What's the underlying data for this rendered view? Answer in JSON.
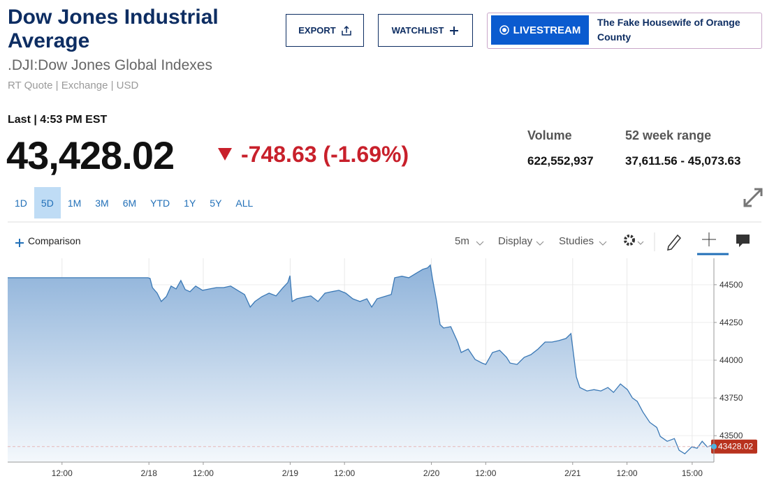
{
  "header": {
    "title": "Dow Jones Industrial Average",
    "subtitle": ".DJI:Dow Jones Global Indexes",
    "quote_info": "RT Quote | Exchange | USD"
  },
  "buttons": {
    "export": "EXPORT",
    "watchlist": "WATCHLIST"
  },
  "livestream": {
    "button": "LIVESTREAM",
    "show": "The Fake Housewife of Orange County"
  },
  "quote": {
    "last": "Last | 4:53 PM EST",
    "price": "43,428.02",
    "change": "-748.63 (-1.69%)",
    "volume_label": "Volume",
    "volume": "622,552,937",
    "range_label": "52 week range",
    "range": "37,611.56 - 45,073.63"
  },
  "range_tabs": {
    "items": [
      "1D",
      "5D",
      "1M",
      "3M",
      "6M",
      "YTD",
      "1Y",
      "5Y",
      "ALL"
    ],
    "selected": 1
  },
  "toolbar": {
    "comparison": "Comparison",
    "interval": "5m",
    "display": "Display",
    "studies": "Studies"
  },
  "chart_data": {
    "type": "area",
    "color": "#3a78b5",
    "x": [
      0,
      6.45,
      6.55,
      6.66,
      6.88,
      7.07,
      7.3,
      7.52,
      7.75,
      7.97,
      8.17,
      8.39,
      8.65,
      8.97,
      9.29,
      9.61,
      9.94,
      10.26,
      10.58,
      10.9,
      11.16,
      11.38,
      11.7,
      12.03,
      12.35,
      12.67,
      12.89,
      12.99,
      13.09,
      13.31,
      13.63,
      13.95,
      14.28,
      14.6,
      14.92,
      15.24,
      15.56,
      15.88,
      16.21,
      16.53,
      16.75,
      17.0,
      17.33,
      17.65,
      17.81,
      18.14,
      18.46,
      18.78,
      19.1,
      19.32,
      19.45,
      19.55,
      19.74,
      19.9,
      20.06,
      20.39,
      20.71,
      20.87,
      21.19,
      21.51,
      21.83,
      22.0,
      22.31,
      22.64,
      22.96,
      23.12,
      23.44,
      23.77,
      24.08,
      24.41,
      24.73,
      25.05,
      25.37,
      25.69,
      25.92,
      26.01,
      26.17,
      26.33,
      26.66,
      26.98,
      27.3,
      27.62,
      27.88,
      28.2,
      28.52,
      28.75,
      28.97,
      29.23,
      29.55,
      29.87,
      30.03,
      30.35,
      30.68,
      30.9,
      31.16,
      31.48,
      31.73,
      31.96,
      32.19,
      32.38,
      32.5
    ],
    "values": [
      44546,
      44546,
      44542,
      44481,
      44444,
      44389,
      44421,
      44491,
      44472,
      44528,
      44468,
      44454,
      44491,
      44463,
      44472,
      44481,
      44481,
      44491,
      44463,
      44435,
      44352,
      44389,
      44421,
      44444,
      44426,
      44481,
      44514,
      44560,
      44389,
      44407,
      44417,
      44426,
      44389,
      44444,
      44454,
      44463,
      44444,
      44407,
      44389,
      44407,
      44352,
      44407,
      44421,
      44435,
      44546,
      44556,
      44546,
      44574,
      44602,
      44611,
      44630,
      44537,
      44389,
      44236,
      44213,
      44222,
      44120,
      44051,
      44074,
      44005,
      43981,
      43972,
      44051,
      44065,
      44019,
      43981,
      43972,
      44019,
      44037,
      44074,
      44120,
      44120,
      44130,
      44144,
      44176,
      44074,
      43889,
      43819,
      43796,
      43805,
      43796,
      43819,
      43787,
      43843,
      43805,
      43750,
      43727,
      43657,
      43588,
      43555,
      43495,
      43463,
      43481,
      43403,
      43380,
      43426,
      43417,
      43463,
      43426,
      43435,
      43428.02
    ],
    "xlim": [
      0,
      32.5
    ],
    "xticks": [
      {
        "value": 2.5,
        "label": "12:00"
      },
      {
        "value": 6.5,
        "label": "2/18"
      },
      {
        "value": 9,
        "label": "12:00"
      },
      {
        "value": 13,
        "label": "2/19"
      },
      {
        "value": 15.5,
        "label": "12:00"
      },
      {
        "value": 19.5,
        "label": "2/20"
      },
      {
        "value": 22,
        "label": "12:00"
      },
      {
        "value": 26,
        "label": "2/21"
      },
      {
        "value": 28.5,
        "label": "12:00"
      },
      {
        "value": 31.5,
        "label": "15:00"
      }
    ],
    "ylim": [
      43325,
      44675
    ],
    "yticks": [
      43500,
      43750,
      44000,
      44250,
      44500
    ],
    "grid": true
  }
}
